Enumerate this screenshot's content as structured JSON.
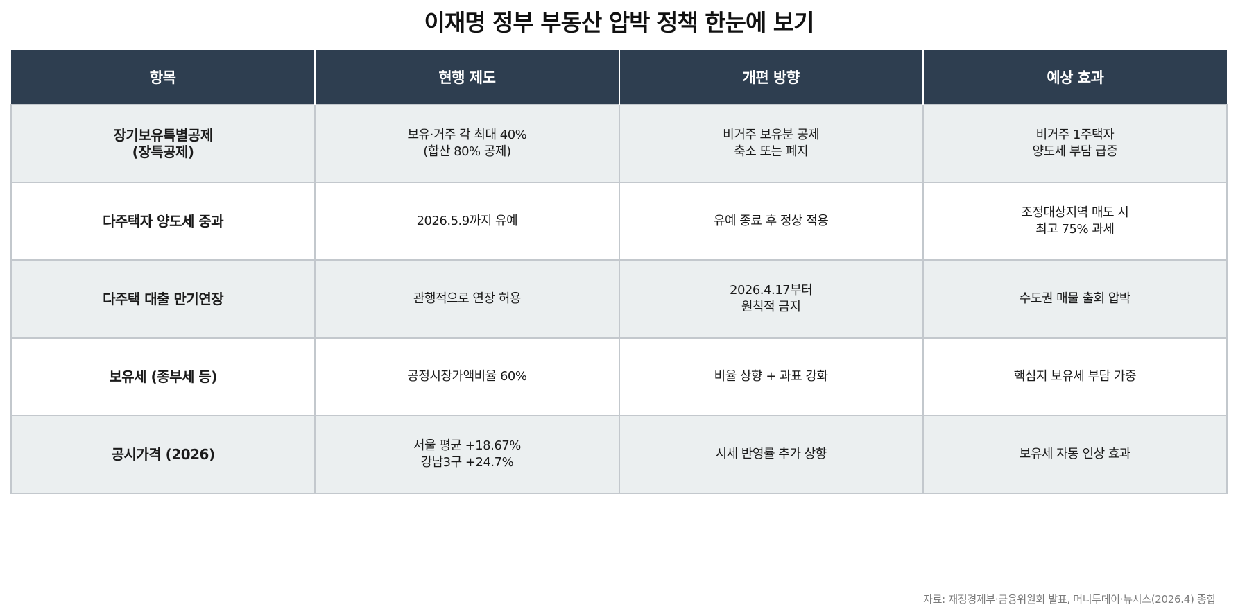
{
  "title": "이재명 정부 부동산 압박 정책 한눈에 보기",
  "table": {
    "headers": [
      "항목",
      "현행 제도",
      "개편 방향",
      "예상 효과"
    ],
    "rows": [
      {
        "item": "장기보유특별공제\n(장특공제)",
        "current": "보유·거주 각 최대 40%\n(합산 80% 공제)",
        "reform": "비거주 보유분 공제\n축소 또는 폐지",
        "effect": "비거주 1주택자\n양도세 부담 급증"
      },
      {
        "item": "다주택자 양도세 중과",
        "current": "2026.5.9까지 유예",
        "reform": "유예 종료 후 정상 적용",
        "effect": "조정대상지역 매도 시\n최고 75% 과세"
      },
      {
        "item": "다주택 대출 만기연장",
        "current": "관행적으로 연장 허용",
        "reform": "2026.4.17부터\n원칙적 금지",
        "effect": "수도권 매물 출회 압박"
      },
      {
        "item": "보유세 (종부세 등)",
        "current": "공정시장가액비율 60%",
        "reform": "비율 상향 + 과표 강화",
        "effect": "핵심지 보유세 부담 가중"
      },
      {
        "item": "공시가격 (2026)",
        "current": "서울 평균 +18.67%\n강남3구 +24.7%",
        "reform": "시세 반영률 추가 상향",
        "effect": "보유세 자동 인상 효과"
      }
    ]
  },
  "source": "자료: 재정경제부·금융위원회 발표, 머니투데이·뉴시스(2026.4) 종합",
  "colors": {
    "header_bg": "#2e3e50",
    "row_alt_bg": "#ebeff0",
    "border": "#c3c8cd"
  }
}
